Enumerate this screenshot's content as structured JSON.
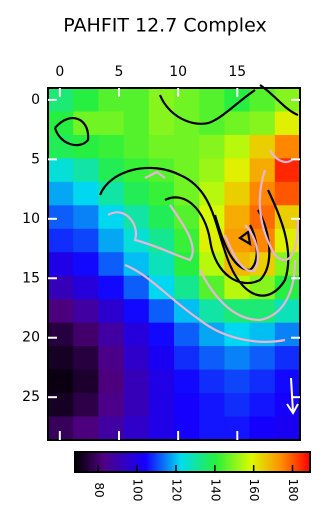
{
  "chart_data": {
    "type": "heatmap",
    "title": "PAHFIT 12.7 Complex",
    "xlim": [
      -1,
      20.3
    ],
    "ylim": [
      -1,
      28.6
    ],
    "xticks": [
      0,
      5,
      10,
      15
    ],
    "yticks": [
      0,
      5,
      10,
      15,
      20,
      25
    ],
    "colormap": "rainbow",
    "clim": [
      68,
      189
    ],
    "colorbar_ticks": [
      80,
      100,
      120,
      140,
      160,
      180
    ],
    "values": [
      [
        135,
        140,
        145,
        145,
        150,
        148,
        145,
        140,
        145,
        150
      ],
      [
        140,
        148,
        148,
        145,
        150,
        148,
        145,
        148,
        150,
        160
      ],
      [
        138,
        140,
        142,
        145,
        148,
        148,
        150,
        155,
        165,
        175
      ],
      [
        125,
        130,
        138,
        142,
        145,
        148,
        152,
        160,
        170,
        185
      ],
      [
        118,
        122,
        130,
        138,
        142,
        148,
        155,
        165,
        175,
        180
      ],
      [
        112,
        115,
        122,
        130,
        138,
        145,
        158,
        170,
        178,
        165
      ],
      [
        108,
        110,
        118,
        125,
        132,
        142,
        160,
        172,
        175,
        160
      ],
      [
        100,
        105,
        112,
        120,
        128,
        140,
        155,
        168,
        165,
        150
      ],
      [
        92,
        98,
        105,
        112,
        122,
        132,
        145,
        155,
        150,
        140
      ],
      [
        82,
        88,
        96,
        105,
        112,
        120,
        130,
        135,
        135,
        128
      ],
      [
        75,
        80,
        88,
        98,
        105,
        112,
        118,
        122,
        120,
        115
      ],
      [
        72,
        75,
        84,
        95,
        102,
        108,
        112,
        115,
        112,
        108
      ],
      [
        70,
        73,
        82,
        92,
        100,
        105,
        108,
        110,
        108,
        105
      ],
      [
        72,
        76,
        84,
        92,
        100,
        104,
        106,
        108,
        106,
        104
      ],
      [
        78,
        82,
        88,
        95,
        100,
        104,
        106,
        106,
        104,
        102
      ]
    ]
  }
}
